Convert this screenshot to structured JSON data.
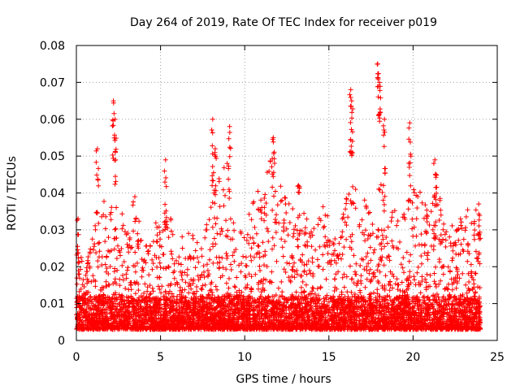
{
  "chart_data": {
    "type": "scatter",
    "title": "Day 264 of 2019, Rate Of TEC Index for receiver p019",
    "xlabel": "GPS time / hours",
    "ylabel": "ROTI / TECUs",
    "xlim": [
      0,
      25
    ],
    "ylim": [
      0,
      0.08
    ],
    "x_ticks": [
      0,
      5,
      10,
      15,
      20,
      25
    ],
    "x_tick_labels": [
      "0",
      "5",
      "10",
      "15",
      "20",
      "25"
    ],
    "y_ticks": [
      0,
      0.01,
      0.02,
      0.03,
      0.04,
      0.05,
      0.06,
      0.07,
      0.08
    ],
    "y_tick_labels": [
      "0",
      "0.01",
      "0.02",
      "0.03",
      "0.04",
      "0.05",
      "0.06",
      "0.07",
      "0.08"
    ],
    "grid": true,
    "marker": "+",
    "series_color": "#ff0000",
    "data_range_hours": [
      0,
      24
    ],
    "baseline_band": [
      0.003,
      0.012
    ],
    "notable_points": [
      {
        "x": 0.1,
        "y": 0.033
      },
      {
        "x": 1.25,
        "y": 0.052
      },
      {
        "x": 2.2,
        "y": 0.065
      },
      {
        "x": 2.3,
        "y": 0.06
      },
      {
        "x": 5.3,
        "y": 0.049
      },
      {
        "x": 8.1,
        "y": 0.06
      },
      {
        "x": 8.25,
        "y": 0.052
      },
      {
        "x": 9.1,
        "y": 0.058
      },
      {
        "x": 11.7,
        "y": 0.055
      },
      {
        "x": 13.2,
        "y": 0.042
      },
      {
        "x": 16.3,
        "y": 0.068
      },
      {
        "x": 16.35,
        "y": 0.065
      },
      {
        "x": 17.9,
        "y": 0.075
      },
      {
        "x": 18.0,
        "y": 0.07
      },
      {
        "x": 18.3,
        "y": 0.06
      },
      {
        "x": 19.8,
        "y": 0.059
      },
      {
        "x": 21.3,
        "y": 0.049
      },
      {
        "x": 21.35,
        "y": 0.045
      },
      {
        "x": 23.9,
        "y": 0.037
      }
    ],
    "activity_envelope": [
      {
        "x": 0.0,
        "y": 0.027
      },
      {
        "x": 0.5,
        "y": 0.02
      },
      {
        "x": 1.0,
        "y": 0.03
      },
      {
        "x": 1.5,
        "y": 0.035
      },
      {
        "x": 2.0,
        "y": 0.045
      },
      {
        "x": 2.5,
        "y": 0.038
      },
      {
        "x": 3.0,
        "y": 0.033
      },
      {
        "x": 3.5,
        "y": 0.04
      },
      {
        "x": 4.0,
        "y": 0.025
      },
      {
        "x": 4.5,
        "y": 0.03
      },
      {
        "x": 5.0,
        "y": 0.035
      },
      {
        "x": 5.5,
        "y": 0.04
      },
      {
        "x": 6.0,
        "y": 0.028
      },
      {
        "x": 6.5,
        "y": 0.03
      },
      {
        "x": 7.0,
        "y": 0.03
      },
      {
        "x": 7.5,
        "y": 0.025
      },
      {
        "x": 8.0,
        "y": 0.04
      },
      {
        "x": 8.5,
        "y": 0.045
      },
      {
        "x": 9.0,
        "y": 0.05
      },
      {
        "x": 9.5,
        "y": 0.03
      },
      {
        "x": 10.0,
        "y": 0.03
      },
      {
        "x": 10.5,
        "y": 0.043
      },
      {
        "x": 11.0,
        "y": 0.04
      },
      {
        "x": 11.5,
        "y": 0.05
      },
      {
        "x": 12.0,
        "y": 0.045
      },
      {
        "x": 12.5,
        "y": 0.04
      },
      {
        "x": 13.0,
        "y": 0.035
      },
      {
        "x": 13.5,
        "y": 0.035
      },
      {
        "x": 14.0,
        "y": 0.03
      },
      {
        "x": 14.5,
        "y": 0.038
      },
      {
        "x": 15.0,
        "y": 0.035
      },
      {
        "x": 15.5,
        "y": 0.025
      },
      {
        "x": 16.0,
        "y": 0.045
      },
      {
        "x": 16.5,
        "y": 0.045
      },
      {
        "x": 17.0,
        "y": 0.04
      },
      {
        "x": 17.5,
        "y": 0.035
      },
      {
        "x": 18.0,
        "y": 0.045
      },
      {
        "x": 18.5,
        "y": 0.04
      },
      {
        "x": 19.0,
        "y": 0.035
      },
      {
        "x": 19.5,
        "y": 0.035
      },
      {
        "x": 20.0,
        "y": 0.042
      },
      {
        "x": 20.5,
        "y": 0.04
      },
      {
        "x": 21.0,
        "y": 0.037
      },
      {
        "x": 21.5,
        "y": 0.043
      },
      {
        "x": 22.0,
        "y": 0.03
      },
      {
        "x": 22.5,
        "y": 0.032
      },
      {
        "x": 23.0,
        "y": 0.035
      },
      {
        "x": 23.5,
        "y": 0.038
      },
      {
        "x": 24.0,
        "y": 0.035
      }
    ]
  }
}
